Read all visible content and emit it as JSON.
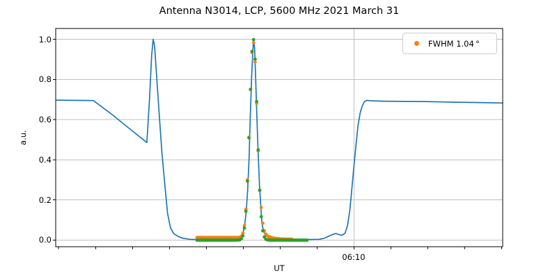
{
  "chart_data": {
    "type": "line",
    "title": "Antenna N3014, LCP, 5600 MHz 2021 March 31",
    "xlabel": "UT",
    "ylabel": "a.u.",
    "legend": {
      "label": "FWHM 1.04 °",
      "marker": "dot",
      "marker_color": "#ff7f0e",
      "position": "upper right"
    },
    "colors": {
      "signal_line": "#1f77b4",
      "data_samples": "#ff7f0e",
      "fit_samples": "#2ca02c",
      "grid": "#c0c0c0",
      "spine": "#000000",
      "background": "#ffffff"
    },
    "axes": {
      "x_units": "UT minutes after 06:00",
      "xlim": [
        1.92,
        14.03
      ],
      "ylim": [
        -0.033,
        1.054
      ],
      "grid": true,
      "x_major_ticks": [
        {
          "t": 10,
          "label": "06:10"
        }
      ],
      "x_minor_ticks": [
        2,
        3,
        4,
        5,
        6,
        7,
        8,
        9,
        11,
        12,
        13,
        14
      ],
      "yticks": [
        0.0,
        0.2,
        0.4,
        0.6,
        0.8,
        1.0
      ]
    },
    "series": [
      {
        "name": "drift-scan-signal",
        "type": "line",
        "color": "#1f77b4",
        "points": [
          [
            1.94,
            0.697
          ],
          [
            2.4,
            0.696
          ],
          [
            2.94,
            0.695
          ],
          [
            3.45,
            0.625
          ],
          [
            3.92,
            0.555
          ],
          [
            4.39,
            0.486
          ],
          [
            4.46,
            0.7
          ],
          [
            4.52,
            0.92
          ],
          [
            4.56,
            1.0
          ],
          [
            4.6,
            0.965
          ],
          [
            4.65,
            0.83
          ],
          [
            4.73,
            0.61
          ],
          [
            4.8,
            0.43
          ],
          [
            4.88,
            0.27
          ],
          [
            4.95,
            0.135
          ],
          [
            5.03,
            0.06
          ],
          [
            5.12,
            0.032
          ],
          [
            5.24,
            0.018
          ],
          [
            5.37,
            0.009
          ],
          [
            5.56,
            0.004
          ],
          [
            5.8,
            0.002
          ],
          [
            6.46,
            0.002
          ],
          [
            6.84,
            0.004
          ],
          [
            6.93,
            0.012
          ],
          [
            6.99,
            0.03
          ],
          [
            7.04,
            0.075
          ],
          [
            7.08,
            0.14
          ],
          [
            7.12,
            0.25
          ],
          [
            7.16,
            0.41
          ],
          [
            7.19,
            0.61
          ],
          [
            7.23,
            0.82
          ],
          [
            7.26,
            0.94
          ],
          [
            7.282,
            1.0
          ],
          [
            7.31,
            0.955
          ],
          [
            7.33,
            0.85
          ],
          [
            7.36,
            0.67
          ],
          [
            7.4,
            0.46
          ],
          [
            7.44,
            0.28
          ],
          [
            7.48,
            0.155
          ],
          [
            7.51,
            0.082
          ],
          [
            7.55,
            0.044
          ],
          [
            7.61,
            0.024
          ],
          [
            7.68,
            0.012
          ],
          [
            7.78,
            0.006
          ],
          [
            7.93,
            0.004
          ],
          [
            8.34,
            0.003
          ],
          [
            8.81,
            0.003
          ],
          [
            9.06,
            0.004
          ],
          [
            9.19,
            0.009
          ],
          [
            9.3,
            0.018
          ],
          [
            9.42,
            0.028
          ],
          [
            9.51,
            0.033
          ],
          [
            9.6,
            0.027
          ],
          [
            9.68,
            0.024
          ],
          [
            9.76,
            0.034
          ],
          [
            9.83,
            0.075
          ],
          [
            9.89,
            0.15
          ],
          [
            9.94,
            0.25
          ],
          [
            10.0,
            0.37
          ],
          [
            10.06,
            0.48
          ],
          [
            10.11,
            0.57
          ],
          [
            10.17,
            0.635
          ],
          [
            10.23,
            0.67
          ],
          [
            10.28,
            0.688
          ],
          [
            10.34,
            0.696
          ],
          [
            10.43,
            0.694
          ],
          [
            10.79,
            0.692
          ],
          [
            11.36,
            0.691
          ],
          [
            11.92,
            0.69
          ],
          [
            12.67,
            0.687
          ],
          [
            13.43,
            0.685
          ],
          [
            14.03,
            0.683
          ]
        ]
      },
      {
        "name": "data-samples",
        "type": "scatter",
        "color": "#ff7f0e",
        "marker_radius": 2.4,
        "grid_t_start": 5.749,
        "grid_t_end": 8.35,
        "grid_step": 0.0414,
        "gain": 0.98,
        "baseline_left": 0.013,
        "baseline_right": 0.004,
        "tail_amp": 0.052,
        "tail_start": 7.46,
        "tail_scale": 0.17
      },
      {
        "name": "gaussian-fit-samples",
        "type": "scatter",
        "color": "#2ca02c",
        "marker_radius": 2.4,
        "grid_t_start": 5.749,
        "grid_t_end": 8.74,
        "grid_step": 0.0414
      }
    ],
    "gaussian_fit": {
      "amplitude": 1.0,
      "center_t": 7.2755,
      "sigma_t": 0.1024,
      "fwhm_deg": 1.04
    }
  }
}
